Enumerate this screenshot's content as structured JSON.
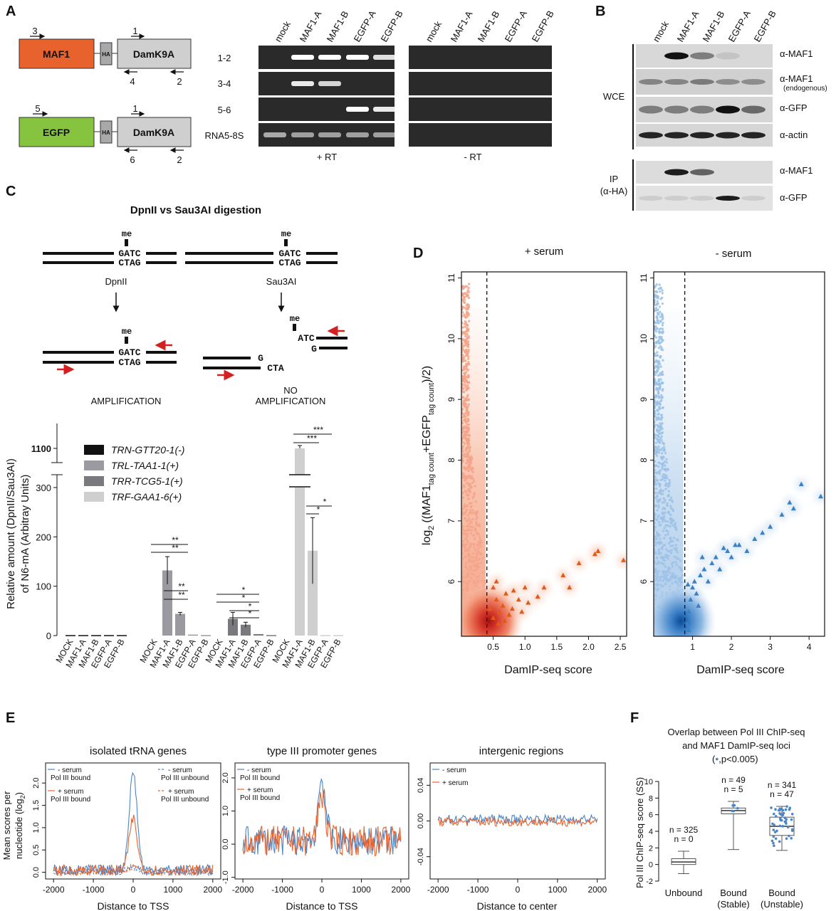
{
  "panels": {
    "A": "A",
    "B": "B",
    "C": "C",
    "D": "D",
    "E": "E",
    "F": "F"
  },
  "panelA": {
    "constructs": [
      {
        "fusion": "MAF1",
        "tag": "HA",
        "dam": "DamK9A",
        "fwd_primer": "3",
        "dam_fwd": "1",
        "rev_primer": "4",
        "dam_rev": "2",
        "color": "#e8622d"
      },
      {
        "fusion": "EGFP",
        "tag": "HA",
        "dam": "DamK9A",
        "fwd_primer": "5",
        "dam_fwd": "1",
        "rev_primer": "6",
        "dam_rev": "2",
        "color": "#86c440"
      }
    ],
    "lanes": [
      "mock",
      "MAF1-A",
      "MAF1-B",
      "EGFP-A",
      "EGFP-B"
    ],
    "rows": [
      "1-2",
      "3-4",
      "5-6",
      "RNA5-8S"
    ],
    "plus_rt": "+ RT",
    "minus_rt": "- RT"
  },
  "panelB": {
    "lanes": [
      "mock",
      "MAF1-A",
      "MAF1-B",
      "EGFP-A",
      "EGFP-B"
    ],
    "blots": [
      "α-MAF1",
      "α-MAF1",
      "α-GFP",
      "α-actin",
      "α-MAF1",
      "α-GFP"
    ],
    "endogenous": "(endogenous)",
    "wce": "WCE",
    "ip": "IP",
    "ip_sub": "(α-HA)"
  },
  "panelC": {
    "title": "DpnII vs Sau3AI digestion",
    "me": "me",
    "gatc": "GATC",
    "ctag": "CTAG",
    "dpnII": "DpnII",
    "sau3AI": "Sau3AI",
    "atc": "ATC",
    "g": "G",
    "cta": "CTA",
    "amplification": "AMPLIFICATION",
    "no": "NO",
    "no_amplification": "AMPLIFICATION",
    "ylabel1": "Relative amount (DpnII/Sau3AI)",
    "ylabel2": "of N6-mA (Arbitray Units)",
    "legend": [
      "TRN-GTT20-1(-)",
      "TRL-TAA1-1(+)",
      "TRR-TCG5-1(+)",
      "TRF-GAA1-6(+)"
    ],
    "legend_colors": [
      "#111111",
      "#9a9aa0",
      "#7a7a7e",
      "#cfcfd0"
    ],
    "sig": {
      "two": "**",
      "three": "***",
      "one": "*"
    }
  },
  "panelD": {
    "title_left": "+ serum",
    "title_right": "- serum",
    "ylabel_main": "log",
    "ylabel_sub": "2",
    "ylabel_rest": "((MAF1",
    "ylabel_s1": "tag count",
    "ylabel_mid": "+EGFP",
    "ylabel_s2": "tag count",
    "ylabel_end": ")/2)",
    "xlabel": "DamIP-seq score"
  },
  "panelE": {
    "titles": [
      "isolated tRNA genes",
      "type III promoter genes",
      "intergenic regions"
    ],
    "ylabel1": "Mean scores per",
    "ylabel2": "nucleotide (log",
    "ylabel2_sub": "2",
    "ylabel2_end": ")",
    "xlabels": [
      "Distance to TSS",
      "Distance to TSS",
      "Distance to center"
    ],
    "legend": {
      "minus_serum": "- serum",
      "plus_serum": "+ serum",
      "pol_bound": "Pol III bound",
      "pol_unbound": "Pol III unbound"
    },
    "colors": {
      "minus": "#4a86c8",
      "plus": "#e8622d"
    }
  },
  "panelF": {
    "title1": "Overlap between Pol III ChIP-seq",
    "title2": "and MAF1 DamIP-seq loci",
    "title3": ",p<0.005)",
    "ylabel": "Pol III ChIP-seq score (SS)",
    "groups": [
      {
        "label1": "Unbound",
        "label2": "",
        "n_total": "n = 325",
        "n_sig": "n = 0"
      },
      {
        "label1": "Bound",
        "label2": "(Stable)",
        "n_total": "n = 49",
        "n_sig": "n = 5"
      },
      {
        "label1": "Bound",
        "label2": "(Unstable)",
        "n_total": "n = 341",
        "n_sig": "n = 47"
      }
    ]
  },
  "chart_data": [
    {
      "type": "bar",
      "panel": "C",
      "categories": [
        "MOCK",
        "MAF1-A",
        "MAF1-B",
        "EGFP-A",
        "EGFP-B"
      ],
      "series": [
        {
          "name": "TRN-GTT20-1(-)",
          "values": [
            1,
            1,
            1,
            1,
            1
          ]
        },
        {
          "name": "TRL-TAA1-1(+)",
          "values": [
            0,
            132,
            44,
            2,
            1
          ]
        },
        {
          "name": "TRR-TCG5-1(+)",
          "values": [
            0,
            34,
            22,
            3,
            1
          ]
        },
        {
          "name": "TRF-GAA1-6(+)",
          "values": [
            0,
            1100,
            172,
            1,
            1
          ]
        }
      ],
      "errors": [
        [
          0,
          0,
          0,
          0,
          0
        ],
        [
          0,
          28,
          3,
          0,
          0
        ],
        [
          0,
          13,
          5,
          0,
          0
        ],
        [
          0,
          8,
          67,
          0,
          0
        ]
      ],
      "y_ticks": [
        "0",
        "100",
        "200",
        "300",
        "1100"
      ],
      "ylim": [
        0,
        1100
      ],
      "y_break": [
        300,
        1100
      ]
    },
    {
      "type": "scatter",
      "panel": "D-left",
      "title": "+ serum",
      "x_ticks": [
        "0.5",
        "1.0",
        "1.5",
        "2.0",
        "2.5"
      ],
      "y_ticks": [
        "6",
        "7",
        "8",
        "9",
        "10",
        "11"
      ],
      "xlim": [
        0,
        2.6
      ],
      "ylim": [
        5.1,
        11.1
      ],
      "threshold": 0.4,
      "outliers": [
        [
          0.45,
          5.55
        ],
        [
          0.5,
          5.4
        ],
        [
          0.55,
          5.7
        ],
        [
          0.6,
          5.5
        ],
        [
          0.65,
          5.6
        ],
        [
          0.7,
          5.8
        ],
        [
          0.75,
          5.45
        ],
        [
          0.8,
          5.55
        ],
        [
          0.9,
          5.7
        ],
        [
          1.0,
          5.9
        ],
        [
          1.05,
          5.65
        ],
        [
          1.2,
          5.75
        ],
        [
          1.3,
          5.9
        ],
        [
          1.6,
          6.1
        ],
        [
          1.7,
          5.9
        ],
        [
          1.85,
          6.3
        ],
        [
          2.1,
          6.45
        ],
        [
          2.15,
          6.5
        ],
        [
          2.55,
          6.35
        ],
        [
          0.5,
          5.9
        ],
        [
          0.58,
          5.3
        ],
        [
          0.68,
          5.35
        ],
        [
          0.82,
          5.85
        ],
        [
          0.95,
          5.5
        ],
        [
          0.55,
          6.0
        ]
      ]
    },
    {
      "type": "scatter",
      "panel": "D-right",
      "title": "- serum",
      "x_ticks": [
        "1",
        "2",
        "3",
        "4"
      ],
      "y_ticks": [
        "6",
        "7",
        "8",
        "9",
        "10",
        "11"
      ],
      "xlim": [
        0,
        4.4
      ],
      "ylim": [
        5.1,
        11.1
      ],
      "threshold": 0.8,
      "outliers": [
        [
          0.85,
          5.3
        ],
        [
          0.9,
          5.5
        ],
        [
          0.95,
          5.7
        ],
        [
          1.0,
          5.9
        ],
        [
          1.05,
          6.0
        ],
        [
          1.1,
          5.8
        ],
        [
          1.2,
          6.1
        ],
        [
          1.3,
          6.2
        ],
        [
          1.4,
          6.0
        ],
        [
          1.5,
          6.3
        ],
        [
          1.6,
          6.4
        ],
        [
          1.7,
          6.2
        ],
        [
          1.9,
          6.5
        ],
        [
          2.0,
          6.4
        ],
        [
          2.2,
          6.6
        ],
        [
          2.4,
          6.5
        ],
        [
          2.6,
          6.7
        ],
        [
          2.8,
          6.8
        ],
        [
          3.0,
          6.9
        ],
        [
          3.3,
          7.1
        ],
        [
          3.5,
          7.3
        ],
        [
          3.6,
          7.2
        ],
        [
          3.8,
          7.6
        ],
        [
          4.3,
          7.4
        ],
        [
          2.1,
          6.6
        ],
        [
          1.15,
          5.6
        ],
        [
          0.9,
          5.2
        ],
        [
          1.25,
          6.4
        ],
        [
          0.88,
          5.95
        ],
        [
          1.8,
          6.55
        ]
      ]
    },
    {
      "type": "line",
      "panel": "E",
      "x_ticks": [
        "-2000",
        "-1000",
        "0",
        "1000",
        "2000"
      ],
      "plots": [
        {
          "y_ticks": [
            "0.0",
            "0.5",
            "1.0",
            "1.5",
            "2.0"
          ],
          "ylim": [
            -0.15,
            2.45
          ]
        },
        {
          "y_ticks": [
            "-1.0",
            "0.0",
            "1.0",
            "2.0"
          ],
          "ylim": [
            -1.05,
            2.45
          ]
        },
        {
          "y_ticks": [
            "-0.04",
            "0.00",
            "0.04"
          ],
          "ylim": [
            -0.065,
            0.065
          ]
        }
      ]
    },
    {
      "type": "box",
      "panel": "F",
      "y_ticks": [
        "-2",
        "0",
        "2",
        "4",
        "6",
        "8",
        "10"
      ],
      "ylim": [
        -2,
        10
      ],
      "boxes": [
        {
          "name": "Unbound",
          "q1": 0.0,
          "median": 0.3,
          "q3": 0.7,
          "whisker_low": -1.1,
          "whisker_high": 1.6
        },
        {
          "name": "Bound (Stable)",
          "q1": 6.1,
          "median": 6.5,
          "q3": 6.8,
          "whisker_low": 1.8,
          "whisker_high": 7.6
        },
        {
          "name": "Bound (Unstable)",
          "q1": 3.5,
          "median": 4.6,
          "q3": 5.7,
          "whisker_low": 1.7,
          "whisker_high": 7.0
        }
      ]
    }
  ]
}
